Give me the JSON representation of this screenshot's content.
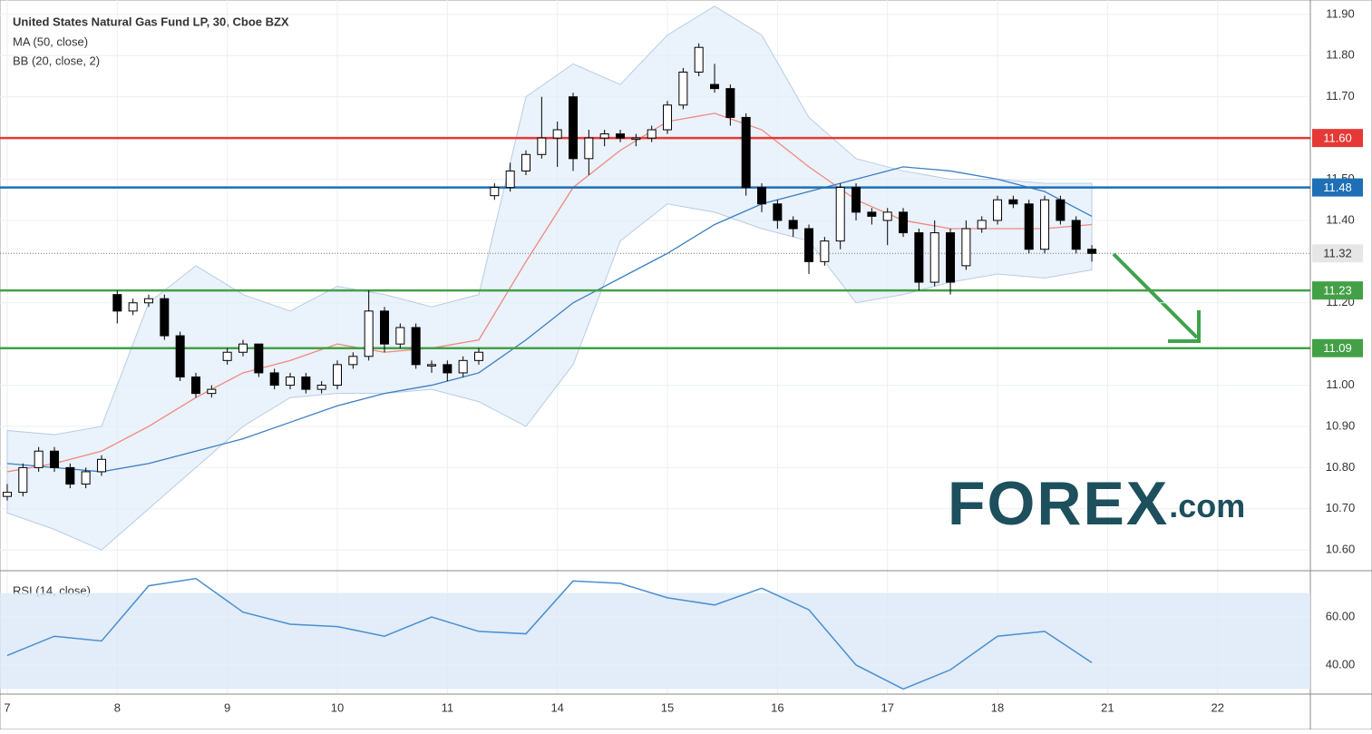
{
  "chart_data": [
    {
      "type": "candlestick",
      "title": "United States Natural Gas Fund LP, 30, Cboe BZX",
      "xlim": [
        -0.46,
        82.9
      ],
      "xticks": [
        {
          "value": 0,
          "label": "7"
        },
        {
          "value": 7,
          "label": "8"
        },
        {
          "value": 14,
          "label": "9"
        },
        {
          "value": 21,
          "label": "10"
        },
        {
          "value": 28,
          "label": "11"
        },
        {
          "value": 35,
          "label": "14"
        },
        {
          "value": 42,
          "label": "15"
        },
        {
          "value": 49,
          "label": "16"
        },
        {
          "value": 56,
          "label": "17"
        },
        {
          "value": 63,
          "label": "18"
        },
        {
          "value": 70,
          "label": "21"
        },
        {
          "value": 77,
          "label": "22"
        }
      ],
      "ylim": [
        10.552,
        11.935
      ],
      "yticks": [
        {
          "value": 10.6,
          "label": "10.60"
        },
        {
          "value": 10.7,
          "label": "10.70"
        },
        {
          "value": 10.8,
          "label": "10.80"
        },
        {
          "value": 10.9,
          "label": "10.90"
        },
        {
          "value": 11,
          "label": "11.00"
        },
        {
          "value": 11.2,
          "label": "11.20"
        },
        {
          "value": 11.4,
          "label": "11.40"
        },
        {
          "value": 11.5,
          "label": "11.50"
        },
        {
          "value": 11.7,
          "label": "11.70"
        },
        {
          "value": 11.8,
          "label": "11.80"
        },
        {
          "value": 11.9,
          "label": "11.90"
        }
      ],
      "open": [
        10.73,
        10.74,
        10.8,
        10.84,
        10.8,
        10.76,
        10.79,
        11.22,
        11.18,
        11.2,
        11.21,
        11.12,
        11.02,
        10.98,
        11.06,
        11.08,
        11.1,
        11.03,
        11.0,
        11.02,
        10.99,
        11.0,
        11.05,
        11.07,
        11.18,
        11.1,
        11.14,
        11.05,
        11.05,
        11.03,
        11.06,
        11.46,
        11.48,
        11.52,
        11.56,
        11.6,
        11.7,
        11.55,
        11.6,
        11.61,
        11.6,
        11.6,
        11.62,
        11.68,
        11.76,
        11.73,
        11.72,
        11.65,
        11.48,
        11.44,
        11.4,
        11.38,
        11.3,
        11.35,
        11.48,
        11.42,
        11.4,
        11.42,
        11.37,
        11.25,
        11.37,
        11.29,
        11.38,
        11.4,
        11.45,
        11.44,
        11.33,
        11.45,
        11.4,
        11.33
      ],
      "high": [
        10.76,
        10.81,
        10.85,
        10.85,
        10.81,
        10.8,
        10.83,
        11.23,
        11.21,
        11.22,
        11.22,
        11.13,
        11.03,
        11.0,
        11.09,
        11.11,
        11.1,
        11.04,
        11.03,
        11.03,
        11.01,
        11.06,
        11.08,
        11.23,
        11.19,
        11.15,
        11.15,
        11.06,
        11.06,
        11.07,
        11.09,
        11.49,
        11.54,
        11.57,
        11.7,
        11.64,
        11.71,
        11.62,
        11.62,
        11.62,
        11.61,
        11.63,
        11.69,
        11.77,
        11.83,
        11.78,
        11.73,
        11.66,
        11.49,
        11.45,
        11.41,
        11.39,
        11.36,
        11.49,
        11.49,
        11.43,
        11.43,
        11.43,
        11.38,
        11.4,
        11.38,
        11.4,
        11.41,
        11.46,
        11.46,
        11.45,
        11.46,
        11.46,
        11.41,
        11.34
      ],
      "low": [
        10.72,
        10.73,
        10.79,
        10.79,
        10.75,
        10.75,
        10.78,
        11.15,
        11.17,
        11.19,
        11.11,
        11.01,
        10.97,
        10.97,
        11.05,
        11.07,
        11.02,
        10.99,
        10.99,
        10.98,
        10.98,
        10.99,
        11.04,
        11.06,
        11.08,
        11.09,
        11.04,
        11.03,
        11.01,
        11.02,
        11.05,
        11.45,
        11.47,
        11.51,
        11.55,
        11.53,
        11.52,
        11.51,
        11.58,
        11.59,
        11.58,
        11.59,
        11.61,
        11.67,
        11.75,
        11.71,
        11.63,
        11.46,
        11.42,
        11.38,
        11.36,
        11.27,
        11.29,
        11.33,
        11.4,
        11.39,
        11.34,
        11.36,
        11.23,
        11.24,
        11.22,
        11.28,
        11.37,
        11.39,
        11.43,
        11.32,
        11.32,
        11.39,
        11.32,
        11.3
      ],
      "close": [
        10.74,
        10.8,
        10.84,
        10.8,
        10.76,
        10.79,
        10.82,
        11.18,
        11.2,
        11.21,
        11.12,
        11.02,
        10.98,
        10.99,
        11.08,
        11.1,
        11.03,
        11.0,
        11.02,
        10.99,
        11.0,
        11.05,
        11.07,
        11.18,
        11.1,
        11.14,
        11.05,
        11.05,
        11.03,
        11.06,
        11.08,
        11.48,
        11.52,
        11.56,
        11.6,
        11.62,
        11.55,
        11.6,
        11.61,
        11.6,
        11.6,
        11.62,
        11.68,
        11.76,
        11.82,
        11.72,
        11.65,
        11.48,
        11.44,
        11.4,
        11.38,
        11.3,
        11.35,
        11.48,
        11.42,
        11.41,
        11.42,
        11.37,
        11.25,
        11.37,
        11.25,
        11.38,
        11.4,
        11.45,
        11.44,
        11.33,
        11.45,
        11.4,
        11.33,
        11.32
      ],
      "line_x": [
        0,
        3,
        6,
        9,
        12,
        15,
        18,
        21,
        24,
        27,
        30,
        33,
        36,
        39,
        42,
        45,
        48,
        51,
        54,
        57,
        60,
        63,
        66,
        69
      ],
      "series": [
        {
          "name": "MA (50, close)",
          "color": "#3a7fc4",
          "values": [
            10.81,
            10.8,
            10.79,
            10.81,
            10.84,
            10.87,
            10.91,
            10.95,
            10.98,
            11.0,
            11.03,
            11.11,
            11.2,
            11.26,
            11.32,
            11.39,
            11.44,
            11.47,
            11.5,
            11.53,
            11.52,
            11.5,
            11.47,
            11.41
          ]
        }
      ],
      "bollinger": {
        "name": "BB (20, close, 2)",
        "color": "#ef8a80",
        "band_color": "#e3eef9",
        "basis": [
          10.79,
          10.81,
          10.84,
          10.9,
          10.97,
          11.03,
          11.06,
          11.1,
          11.08,
          11.09,
          11.11,
          11.3,
          11.48,
          11.57,
          11.64,
          11.66,
          11.62,
          11.53,
          11.45,
          11.4,
          11.38,
          11.38,
          11.38,
          11.39
        ],
        "upper": [
          10.89,
          10.88,
          10.9,
          11.2,
          11.29,
          11.22,
          11.18,
          11.24,
          11.22,
          11.19,
          11.22,
          11.7,
          11.78,
          11.73,
          11.85,
          11.92,
          11.85,
          11.65,
          11.55,
          11.52,
          11.5,
          11.5,
          11.49,
          11.49
        ],
        "lower": [
          10.69,
          10.65,
          10.6,
          10.7,
          10.8,
          10.9,
          10.97,
          10.98,
          10.98,
          10.99,
          10.96,
          10.9,
          11.05,
          11.35,
          11.44,
          11.42,
          11.38,
          11.35,
          11.2,
          11.22,
          11.25,
          11.27,
          11.26,
          11.28
        ]
      },
      "levels": [
        {
          "value": 11.6,
          "label": "11.60",
          "color": "#e53935"
        },
        {
          "value": 11.48,
          "label": "11.48",
          "color": "#1e6fb5"
        },
        {
          "value": 11.23,
          "label": "11.23",
          "color": "#43a047"
        },
        {
          "value": 11.09,
          "label": "11.09",
          "color": "#43a047"
        }
      ],
      "last_price": {
        "value": 11.32,
        "label": "11.32"
      },
      "logo": {
        "main": "FOREX",
        "suffix": ".com"
      }
    },
    {
      "type": "line",
      "title": "RSI (14, close)",
      "ylim": [
        27.9,
        78.9
      ],
      "yticks": [
        {
          "value": 40,
          "label": "40.00"
        },
        {
          "value": 60,
          "label": "60.00"
        }
      ],
      "band": [
        30,
        70
      ],
      "band_color": "#dbe8f7",
      "x": [
        0,
        3,
        6,
        9,
        12,
        15,
        18,
        21,
        24,
        27,
        30,
        33,
        36,
        39,
        42,
        45,
        48,
        51,
        54,
        57,
        60,
        63,
        66,
        69
      ],
      "series": [
        {
          "name": "RSI (14, close)",
          "color": "#4a8fd0",
          "values": [
            44,
            52,
            50,
            73,
            76,
            62,
            57,
            56,
            52,
            60,
            54,
            53,
            75,
            74,
            68,
            65,
            72,
            63,
            40,
            30,
            38,
            52,
            54,
            41
          ]
        }
      ]
    }
  ]
}
